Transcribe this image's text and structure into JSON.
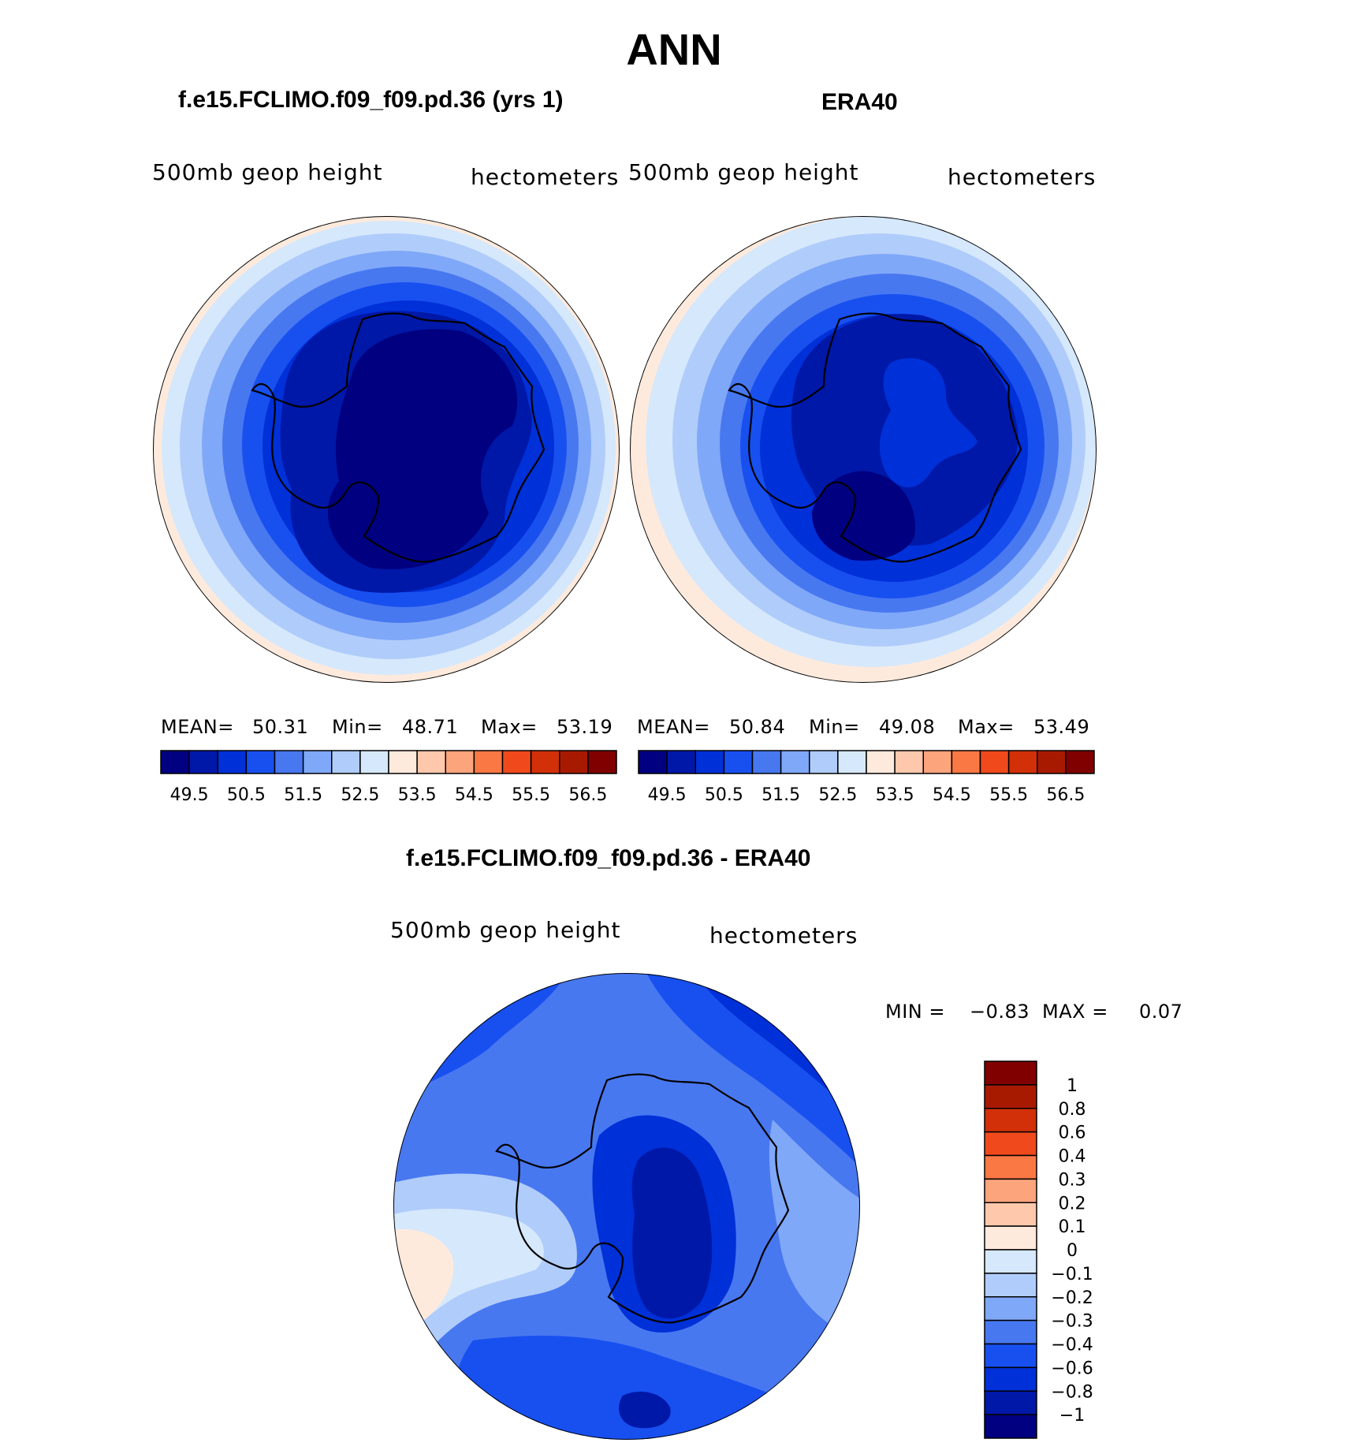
{
  "figure": {
    "season_title": "ANN",
    "variable_label": "500mb  geop  height",
    "units_label": "hectometers"
  },
  "panels": {
    "model": {
      "title": "f.e15.FCLIMO.f09_f09.pd.36 (yrs 1)",
      "stats": {
        "mean_label": "MEAN=",
        "mean": "50.31",
        "min_label": "Min=",
        "min": "48.71",
        "max_label": "Max=",
        "max": "53.19"
      }
    },
    "obs": {
      "title": "ERA40",
      "stats": {
        "mean_label": "MEAN=",
        "mean": "50.84",
        "min_label": "Min=",
        "min": "49.08",
        "max_label": "Max=",
        "max": "53.49"
      }
    },
    "diff": {
      "title": "f.e15.FCLIMO.f09_f09.pd.36 - ERA40",
      "stats": {
        "min_label": "MIN =",
        "min": "−0.83",
        "max_label": "MAX =",
        "max": "0.07"
      }
    }
  },
  "colorbars": {
    "abs": {
      "colors": [
        "#000080",
        "#0018a8",
        "#0030d8",
        "#1850f0",
        "#4878f0",
        "#80a8f8",
        "#b0ccfa",
        "#d6e8fc",
        "#feeadc",
        "#fdc8ac",
        "#fca47c",
        "#fa7844",
        "#f04a1c",
        "#d23008",
        "#a81a00",
        "#800000"
      ],
      "tick_labels": [
        "49.5",
        "50.5",
        "51.5",
        "52.5",
        "53.5",
        "54.5",
        "55.5",
        "56.5"
      ]
    },
    "diff": {
      "colors": [
        "#800000",
        "#a81a00",
        "#d23008",
        "#f04a1c",
        "#fa7844",
        "#fca47c",
        "#fdc8ac",
        "#feeadc",
        "#d6e8fc",
        "#b0ccfa",
        "#80a8f8",
        "#4878f0",
        "#1850f0",
        "#0030d8",
        "#0018a8",
        "#000080"
      ],
      "tick_labels": [
        "1",
        "0.8",
        "0.6",
        "0.4",
        "0.3",
        "0.2",
        "0.1",
        "0",
        "−0.1",
        "−0.2",
        "−0.3",
        "−0.4",
        "−0.6",
        "−0.8",
        "−1"
      ]
    }
  }
}
